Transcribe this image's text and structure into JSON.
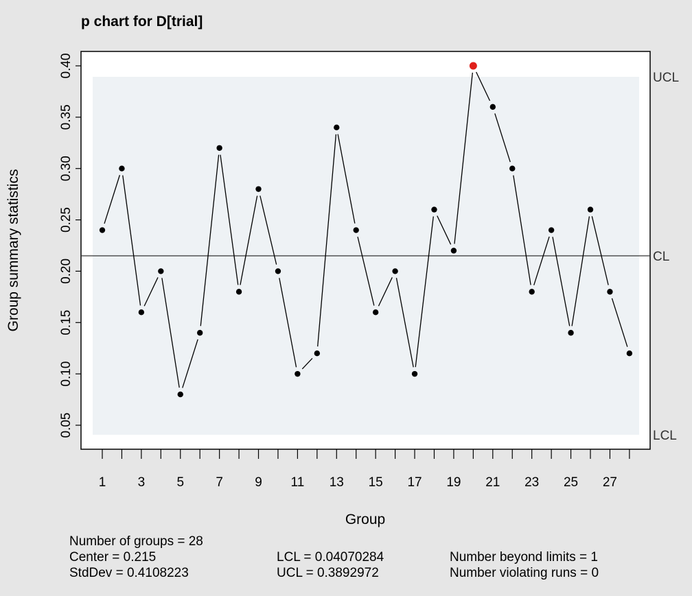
{
  "chart_data": {
    "type": "line",
    "title": "p chart for D[trial]",
    "xlabel": "Group",
    "ylabel": "Group summary statistics",
    "x": [
      1,
      2,
      3,
      4,
      5,
      6,
      7,
      8,
      9,
      10,
      11,
      12,
      13,
      14,
      15,
      16,
      17,
      18,
      19,
      20,
      21,
      22,
      23,
      24,
      25,
      26,
      27,
      28
    ],
    "values": [
      0.24,
      0.3,
      0.16,
      0.2,
      0.08,
      0.14,
      0.32,
      0.18,
      0.28,
      0.2,
      0.1,
      0.12,
      0.34,
      0.24,
      0.16,
      0.2,
      0.1,
      0.26,
      0.22,
      0.4,
      0.36,
      0.3,
      0.18,
      0.24,
      0.14,
      0.26,
      0.18,
      0.12
    ],
    "ylim": [
      0.04,
      0.41
    ],
    "y_ticks": [
      "0.05",
      "0.10",
      "0.15",
      "0.20",
      "0.25",
      "0.30",
      "0.35",
      "0.40"
    ],
    "x_ticks_labeled": [
      "1",
      "3",
      "5",
      "7",
      "9",
      "11",
      "13",
      "15",
      "17",
      "19",
      "21",
      "23",
      "25",
      "27"
    ],
    "center": 0.215,
    "lcl": 0.04070284,
    "ucl": 0.3892972,
    "limit_labels": {
      "ucl": "UCL",
      "cl": "CL",
      "lcl": "LCL"
    },
    "beyond_limits_index": [
      20
    ],
    "colors": {
      "background": "#e6e6e6",
      "plot_area": "#ffffff",
      "control_band": "#eef2f5",
      "points": "#000000",
      "violation": "#e0201b",
      "line": "#000000"
    },
    "grid": false
  },
  "stats": {
    "groups": "Number of groups = 28",
    "center": "Center = 0.215",
    "stddev": "StdDev = 0.4108223",
    "lcl": "LCL = 0.04070284",
    "ucl": "UCL = 0.3892972",
    "beyond": "Number beyond limits = 1",
    "runs": "Number violating runs = 0"
  }
}
